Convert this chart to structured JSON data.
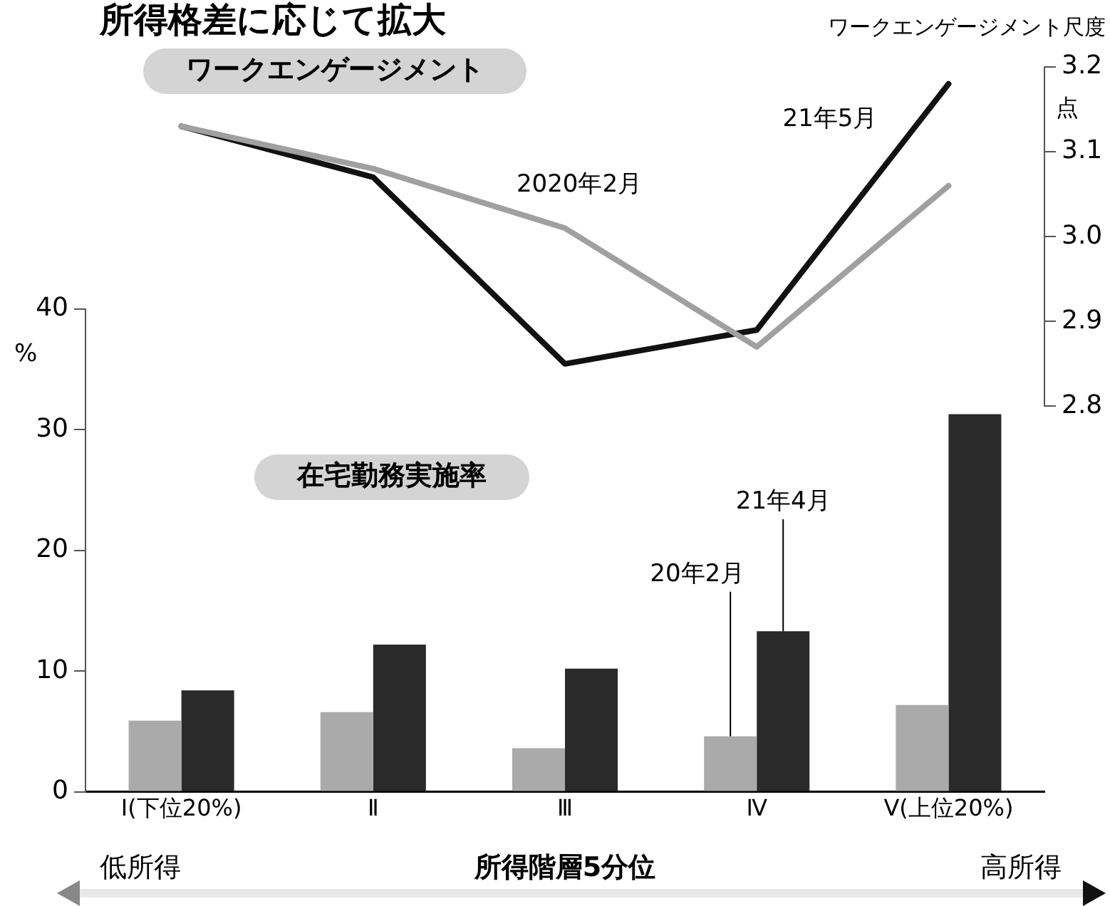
{
  "chart_data": [
    {
      "type": "line",
      "title": "所得格差に応じて拡大",
      "annotations": [
        "ワークエンゲージメント",
        "点",
        "ワークエンゲージメント尺度"
      ],
      "categories": [
        null,
        null,
        null,
        null,
        null
      ],
      "series": [
        {
          "name": "2020年2月",
          "color": "#a0a0a0",
          "values": [
            3.13,
            3.08,
            3.01,
            2.87,
            3.06
          ]
        },
        {
          "name": "21年5月",
          "color": "#111111",
          "values": [
            3.13,
            3.07,
            2.85,
            2.89,
            3.18
          ]
        }
      ],
      "ylim": [
        2.8,
        3.2
      ],
      "yticks": [
        2.8,
        2.9,
        {
          "value": 3.0,
          "label": "3.0"
        },
        3.1,
        3.2
      ],
      "tick_labels": "y",
      "grid": false,
      "legend": false,
      "marker": "none",
      "line_style": "solid"
    },
    {
      "type": "bar",
      "xlabel": "所得階層5分位",
      "ylabel": "%",
      "annotations": [
        "在宅勤務実施率",
        "低所得",
        "高所得"
      ],
      "categories": [
        "Ⅰ(下位20%)",
        "Ⅱ",
        "Ⅲ",
        "Ⅳ",
        "Ⅴ(上位20%)"
      ],
      "series": [
        {
          "name": "20年2月",
          "color": "#aaaaaa",
          "values": [
            5.9,
            6.6,
            3.6,
            4.6,
            7.2
          ]
        },
        {
          "name": "21年4月",
          "color": "#2a2a2a",
          "values": [
            8.4,
            12.2,
            10.2,
            13.3,
            31.3
          ]
        }
      ],
      "ylim": [
        0,
        40
      ],
      "yticks": [
        0,
        10,
        20,
        30,
        40
      ],
      "grid": false,
      "legend": false
    }
  ]
}
